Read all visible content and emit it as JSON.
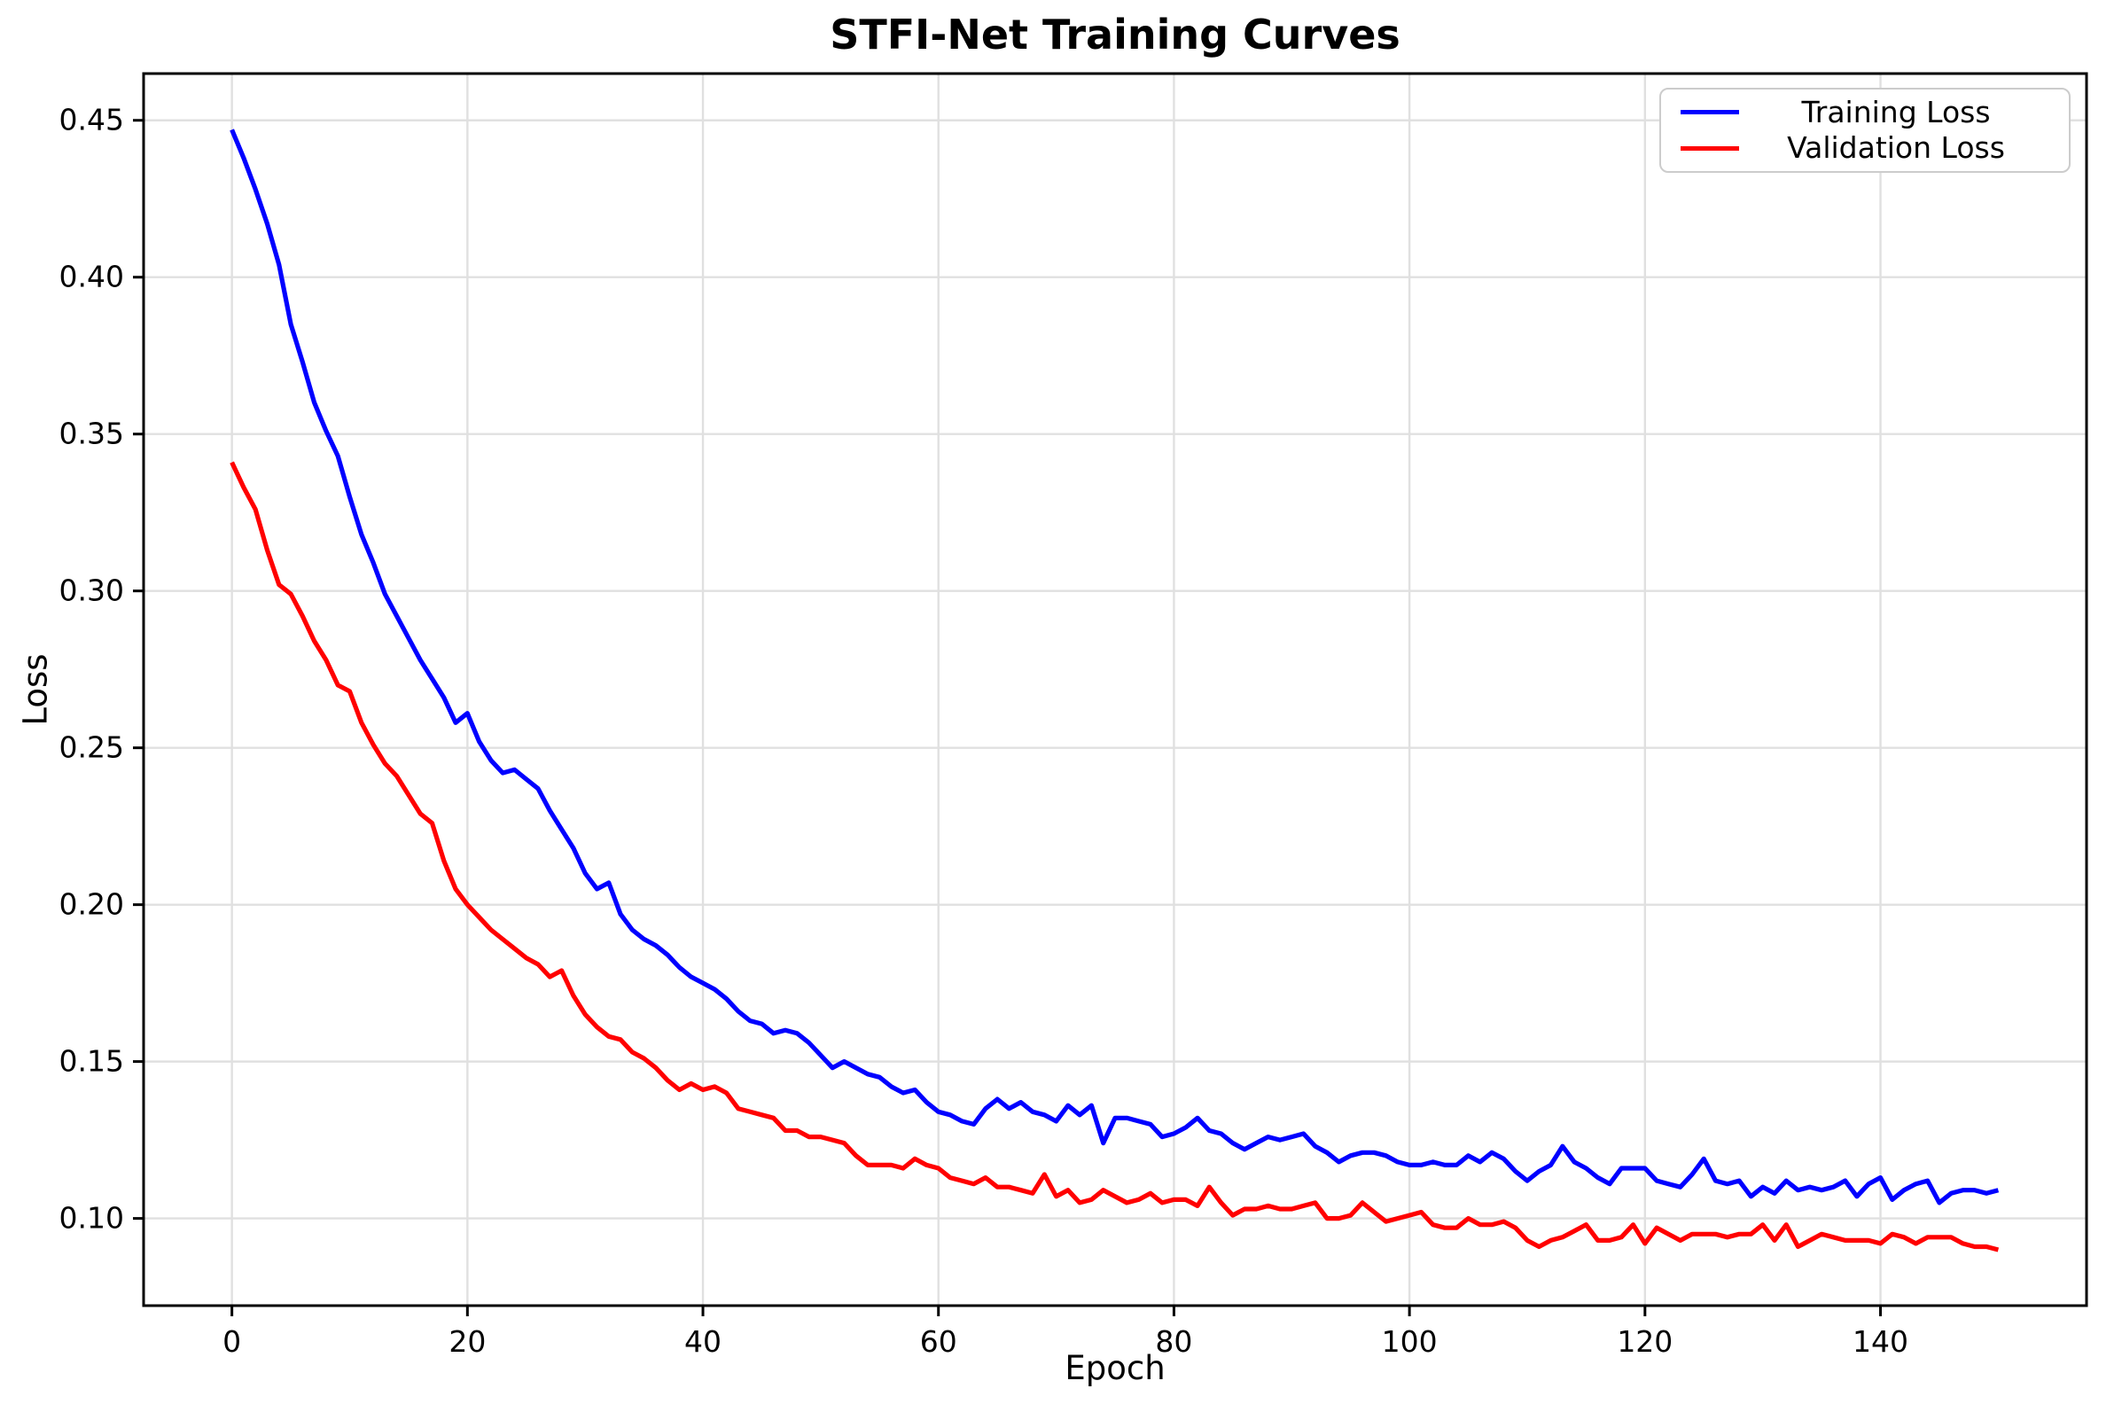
{
  "figure": {
    "title": "STFI-Net Training Curves",
    "xlabel": "Epoch",
    "ylabel": "Loss"
  },
  "legend": {
    "position": "upper right",
    "items": [
      {
        "label": "Training Loss",
        "color": "#0000ff"
      },
      {
        "label": "Validation Loss",
        "color": "#ff0000"
      }
    ]
  },
  "chart_data": {
    "type": "line",
    "title": "STFI-Net Training Curves",
    "xlabel": "Epoch",
    "ylabel": "Loss",
    "grid": true,
    "legend_position": "upper right",
    "xlim": [
      -7.5,
      157.5
    ],
    "ylim": [
      0.0722,
      0.4649
    ],
    "x_ticks": [
      0,
      20,
      40,
      60,
      80,
      100,
      120,
      140
    ],
    "y_ticks": [
      0.1,
      0.15,
      0.2,
      0.25,
      0.3,
      0.35,
      0.4,
      0.45
    ],
    "y_tick_labels": [
      "0.10",
      "0.15",
      "0.20",
      "0.25",
      "0.30",
      "0.35",
      "0.40",
      "0.45"
    ],
    "x_start": 0,
    "x_step": 1,
    "epoch_range": [
      0,
      150
    ],
    "series": [
      {
        "name": "Training Loss",
        "color": "#0000ff",
        "values": [
          0.447,
          0.438,
          0.428,
          0.417,
          0.404,
          0.385,
          0.373,
          0.36,
          0.351,
          0.343,
          0.33,
          0.318,
          0.309,
          0.299,
          0.292,
          0.285,
          0.278,
          0.272,
          0.266,
          0.258,
          0.261,
          0.252,
          0.246,
          0.242,
          0.243,
          0.24,
          0.237,
          0.23,
          0.224,
          0.218,
          0.21,
          0.205,
          0.207,
          0.197,
          0.192,
          0.189,
          0.187,
          0.184,
          0.18,
          0.177,
          0.175,
          0.173,
          0.17,
          0.166,
          0.163,
          0.162,
          0.159,
          0.16,
          0.159,
          0.156,
          0.152,
          0.148,
          0.15,
          0.148,
          0.146,
          0.145,
          0.142,
          0.14,
          0.141,
          0.137,
          0.134,
          0.133,
          0.131,
          0.13,
          0.135,
          0.138,
          0.135,
          0.137,
          0.134,
          0.133,
          0.131,
          0.136,
          0.133,
          0.136,
          0.124,
          0.132,
          0.132,
          0.131,
          0.13,
          0.126,
          0.127,
          0.129,
          0.132,
          0.128,
          0.127,
          0.124,
          0.122,
          0.124,
          0.126,
          0.125,
          0.126,
          0.127,
          0.123,
          0.121,
          0.118,
          0.12,
          0.121,
          0.121,
          0.12,
          0.118,
          0.117,
          0.117,
          0.118,
          0.117,
          0.117,
          0.12,
          0.118,
          0.121,
          0.119,
          0.115,
          0.112,
          0.115,
          0.117,
          0.123,
          0.118,
          0.116,
          0.113,
          0.111,
          0.116,
          0.116,
          0.116,
          0.112,
          0.111,
          0.11,
          0.114,
          0.119,
          0.112,
          0.111,
          0.112,
          0.107,
          0.11,
          0.108,
          0.112,
          0.109,
          0.11,
          0.109,
          0.11,
          0.112,
          0.107,
          0.111,
          0.113,
          0.106,
          0.109,
          0.111,
          0.112,
          0.105,
          0.108,
          0.109,
          0.109,
          0.108,
          0.109
        ]
      },
      {
        "name": "Validation Loss",
        "color": "#ff0000",
        "values": [
          0.341,
          0.333,
          0.326,
          0.313,
          0.302,
          0.299,
          0.292,
          0.284,
          0.278,
          0.27,
          0.268,
          0.258,
          0.251,
          0.245,
          0.241,
          0.235,
          0.229,
          0.226,
          0.214,
          0.205,
          0.2,
          0.196,
          0.192,
          0.189,
          0.186,
          0.183,
          0.181,
          0.177,
          0.179,
          0.171,
          0.165,
          0.161,
          0.158,
          0.157,
          0.153,
          0.151,
          0.148,
          0.144,
          0.141,
          0.143,
          0.141,
          0.142,
          0.14,
          0.135,
          0.134,
          0.133,
          0.132,
          0.128,
          0.128,
          0.126,
          0.126,
          0.125,
          0.124,
          0.12,
          0.117,
          0.117,
          0.117,
          0.116,
          0.119,
          0.117,
          0.116,
          0.113,
          0.112,
          0.111,
          0.113,
          0.11,
          0.11,
          0.109,
          0.108,
          0.114,
          0.107,
          0.109,
          0.105,
          0.106,
          0.109,
          0.107,
          0.105,
          0.106,
          0.108,
          0.105,
          0.106,
          0.106,
          0.104,
          0.11,
          0.105,
          0.101,
          0.103,
          0.103,
          0.104,
          0.103,
          0.103,
          0.104,
          0.105,
          0.1,
          0.1,
          0.101,
          0.105,
          0.102,
          0.099,
          0.1,
          0.101,
          0.102,
          0.098,
          0.097,
          0.097,
          0.1,
          0.098,
          0.098,
          0.099,
          0.097,
          0.093,
          0.091,
          0.093,
          0.094,
          0.096,
          0.098,
          0.093,
          0.093,
          0.094,
          0.098,
          0.092,
          0.097,
          0.095,
          0.093,
          0.095,
          0.095,
          0.095,
          0.094,
          0.095,
          0.095,
          0.098,
          0.093,
          0.098,
          0.091,
          0.093,
          0.095,
          0.094,
          0.093,
          0.093,
          0.093,
          0.092,
          0.095,
          0.094,
          0.092,
          0.094,
          0.094,
          0.094,
          0.092,
          0.091,
          0.091,
          0.09
        ]
      }
    ]
  }
}
